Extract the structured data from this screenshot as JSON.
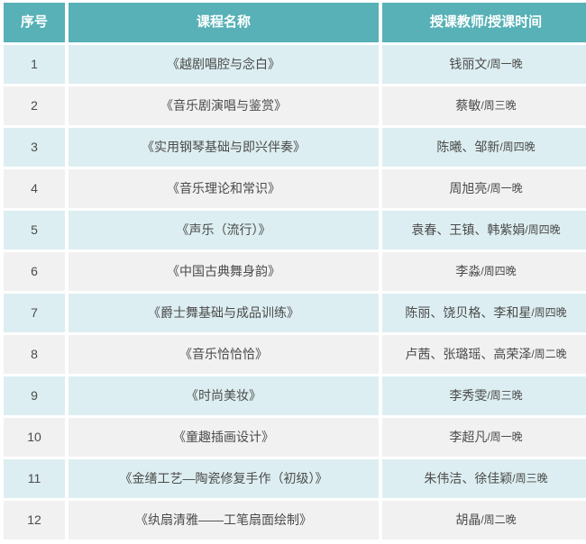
{
  "colors": {
    "header_bg": "#57b1b7",
    "header_text": "#ffffff",
    "row_odd_bg": "#dceef1",
    "row_even_bg": "#f1f1f1",
    "body_text": "#4b4b4b"
  },
  "table": {
    "headers": [
      "序号",
      "课程名称",
      "授课教师/授课时间"
    ],
    "rows": [
      {
        "num": "1",
        "course": "《越剧唱腔与念白》",
        "teachers": "钱丽文",
        "time": "/周一晚"
      },
      {
        "num": "2",
        "course": "《音乐剧演唱与鉴赏》",
        "teachers": "蔡敏",
        "time": "/周三晚"
      },
      {
        "num": "3",
        "course": "《实用钢琴基础与即兴伴奏》",
        "teachers": "陈曦、邹新",
        "time": "/周四晚"
      },
      {
        "num": "4",
        "course": "《音乐理论和常识》",
        "teachers": "周旭亮",
        "time": "/周一晚"
      },
      {
        "num": "5",
        "course": "《声乐（流行）》",
        "teachers": "袁春、王镇、韩紫娟",
        "time": "/周四晚"
      },
      {
        "num": "6",
        "course": "《中国古典舞身韵》",
        "teachers": "李淼",
        "time": "/周四晚"
      },
      {
        "num": "7",
        "course": "《爵士舞基础与成品训练》",
        "teachers": "陈丽、饶贝格、李和星",
        "time": "/周四晚"
      },
      {
        "num": "8",
        "course": "《音乐恰恰恰》",
        "teachers": "卢茜、张璐瑶、高荣泽",
        "time": "/周二晚"
      },
      {
        "num": "9",
        "course": "《时尚美妆》",
        "teachers": "李秀雯",
        "time": "/周三晚"
      },
      {
        "num": "10",
        "course": "《童趣插画设计》",
        "teachers": "李超凡",
        "time": "/周一晚"
      },
      {
        "num": "11",
        "course": "《金缮工艺—陶瓷修复手作（初级）》",
        "teachers": "朱伟洁、徐佳颖",
        "time": "/周三晚"
      },
      {
        "num": "12",
        "course": "《纨扇清雅——工笔扇面绘制》",
        "teachers": "胡晶",
        "time": "/周二晚"
      }
    ]
  }
}
